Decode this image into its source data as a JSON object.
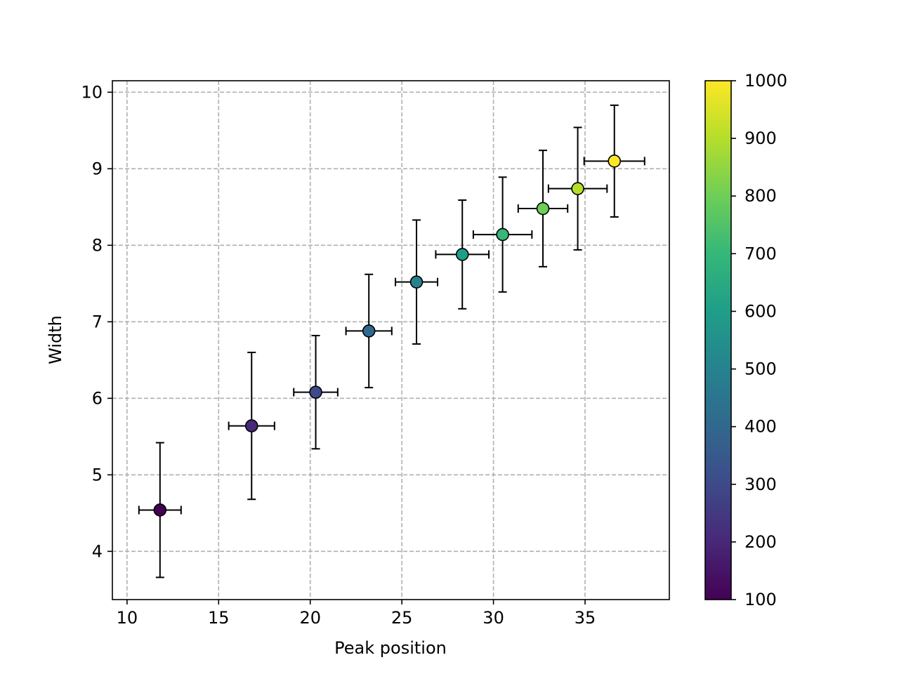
{
  "chart_data": {
    "type": "scatter",
    "title": "",
    "xlabel": "Peak position",
    "ylabel": "Width",
    "xlim": [
      9.2,
      39.6
    ],
    "ylim": [
      3.37,
      10.15
    ],
    "xticks": [
      10,
      15,
      20,
      25,
      30,
      35
    ],
    "yticks": [
      4,
      5,
      6,
      7,
      8,
      9,
      10
    ],
    "grid": true,
    "colorbar": {
      "colormap": "viridis",
      "range": [
        100,
        1000
      ],
      "ticks": [
        100,
        200,
        300,
        400,
        500,
        600,
        700,
        800,
        900,
        1000
      ]
    },
    "points": [
      {
        "x": 11.8,
        "y": 4.54,
        "xerr": 1.15,
        "yerr": 0.88,
        "c": 100
      },
      {
        "x": 16.8,
        "y": 5.64,
        "xerr": 1.25,
        "yerr": 0.96,
        "c": 200
      },
      {
        "x": 20.3,
        "y": 6.08,
        "xerr": 1.2,
        "yerr": 0.74,
        "c": 300
      },
      {
        "x": 23.2,
        "y": 6.88,
        "xerr": 1.25,
        "yerr": 0.74,
        "c": 400
      },
      {
        "x": 25.8,
        "y": 7.52,
        "xerr": 1.15,
        "yerr": 0.81,
        "c": 500
      },
      {
        "x": 28.3,
        "y": 7.88,
        "xerr": 1.45,
        "yerr": 0.71,
        "c": 600
      },
      {
        "x": 30.5,
        "y": 8.14,
        "xerr": 1.6,
        "yerr": 0.75,
        "c": 700
      },
      {
        "x": 32.7,
        "y": 8.48,
        "xerr": 1.35,
        "yerr": 0.76,
        "c": 800
      },
      {
        "x": 34.6,
        "y": 8.74,
        "xerr": 1.6,
        "yerr": 0.8,
        "c": 900
      },
      {
        "x": 36.6,
        "y": 9.1,
        "xerr": 1.65,
        "yerr": 0.73,
        "c": 1000
      }
    ]
  }
}
